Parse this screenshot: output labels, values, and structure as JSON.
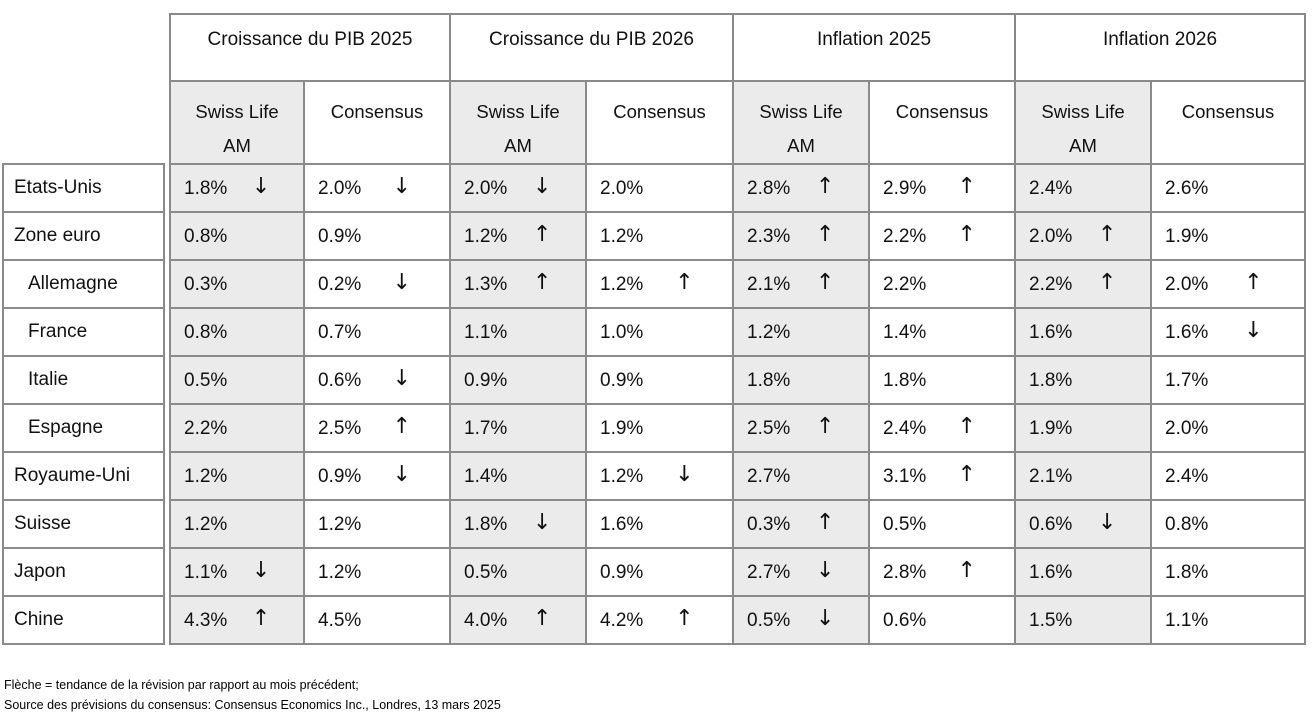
{
  "table": {
    "groups": [
      {
        "label": "Croissance du PIB 2025"
      },
      {
        "label": "Croissance du PIB 2026"
      },
      {
        "label": "Inflation 2025"
      },
      {
        "label": "Inflation 2026"
      }
    ],
    "subheader": {
      "swiss_life": "Swiss Life AM",
      "consensus": "Consensus"
    },
    "rows": [
      {
        "label": "Etats-Unis",
        "indent": false,
        "cells": [
          {
            "value": "1.8%",
            "arrow": "down"
          },
          {
            "value": "2.0%",
            "arrow": "down"
          },
          {
            "value": "2.0%",
            "arrow": "down"
          },
          {
            "value": "2.0%",
            "arrow": null
          },
          {
            "value": "2.8%",
            "arrow": "up"
          },
          {
            "value": "2.9%",
            "arrow": "up"
          },
          {
            "value": "2.4%",
            "arrow": null
          },
          {
            "value": "2.6%",
            "arrow": null
          }
        ]
      },
      {
        "label": "Zone euro",
        "indent": false,
        "cells": [
          {
            "value": "0.8%",
            "arrow": null
          },
          {
            "value": "0.9%",
            "arrow": null
          },
          {
            "value": "1.2%",
            "arrow": "up"
          },
          {
            "value": "1.2%",
            "arrow": null
          },
          {
            "value": "2.3%",
            "arrow": "up"
          },
          {
            "value": "2.2%",
            "arrow": "up"
          },
          {
            "value": "2.0%",
            "arrow": "up"
          },
          {
            "value": "1.9%",
            "arrow": null
          }
        ]
      },
      {
        "label": "Allemagne",
        "indent": true,
        "cells": [
          {
            "value": "0.3%",
            "arrow": null
          },
          {
            "value": "0.2%",
            "arrow": "down"
          },
          {
            "value": "1.3%",
            "arrow": "up"
          },
          {
            "value": "1.2%",
            "arrow": "up"
          },
          {
            "value": "2.1%",
            "arrow": "up"
          },
          {
            "value": "2.2%",
            "arrow": null
          },
          {
            "value": "2.2%",
            "arrow": "up"
          },
          {
            "value": "2.0%",
            "arrow": "up"
          }
        ]
      },
      {
        "label": "France",
        "indent": true,
        "cells": [
          {
            "value": "0.8%",
            "arrow": null
          },
          {
            "value": "0.7%",
            "arrow": null
          },
          {
            "value": "1.1%",
            "arrow": null
          },
          {
            "value": "1.0%",
            "arrow": null
          },
          {
            "value": "1.2%",
            "arrow": null
          },
          {
            "value": "1.4%",
            "arrow": null
          },
          {
            "value": "1.6%",
            "arrow": null
          },
          {
            "value": "1.6%",
            "arrow": "down"
          }
        ]
      },
      {
        "label": "Italie",
        "indent": true,
        "cells": [
          {
            "value": "0.5%",
            "arrow": null
          },
          {
            "value": "0.6%",
            "arrow": "down"
          },
          {
            "value": "0.9%",
            "arrow": null
          },
          {
            "value": "0.9%",
            "arrow": null
          },
          {
            "value": "1.8%",
            "arrow": null
          },
          {
            "value": "1.8%",
            "arrow": null
          },
          {
            "value": "1.8%",
            "arrow": null
          },
          {
            "value": "1.7%",
            "arrow": null
          }
        ]
      },
      {
        "label": "Espagne",
        "indent": true,
        "cells": [
          {
            "value": "2.2%",
            "arrow": null
          },
          {
            "value": "2.5%",
            "arrow": "up"
          },
          {
            "value": "1.7%",
            "arrow": null
          },
          {
            "value": "1.9%",
            "arrow": null
          },
          {
            "value": "2.5%",
            "arrow": "up"
          },
          {
            "value": "2.4%",
            "arrow": "up"
          },
          {
            "value": "1.9%",
            "arrow": null
          },
          {
            "value": "2.0%",
            "arrow": null
          }
        ]
      },
      {
        "label": "Royaume-Uni",
        "indent": false,
        "cells": [
          {
            "value": "1.2%",
            "arrow": null
          },
          {
            "value": "0.9%",
            "arrow": "down"
          },
          {
            "value": "1.4%",
            "arrow": null
          },
          {
            "value": "1.2%",
            "arrow": "down"
          },
          {
            "value": "2.7%",
            "arrow": null
          },
          {
            "value": "3.1%",
            "arrow": "up"
          },
          {
            "value": "2.1%",
            "arrow": null
          },
          {
            "value": "2.4%",
            "arrow": null
          }
        ]
      },
      {
        "label": "Suisse",
        "indent": false,
        "cells": [
          {
            "value": "1.2%",
            "arrow": null
          },
          {
            "value": "1.2%",
            "arrow": null
          },
          {
            "value": "1.8%",
            "arrow": "down"
          },
          {
            "value": "1.6%",
            "arrow": null
          },
          {
            "value": "0.3%",
            "arrow": "up"
          },
          {
            "value": "0.5%",
            "arrow": null
          },
          {
            "value": "0.6%",
            "arrow": "down"
          },
          {
            "value": "0.8%",
            "arrow": null
          }
        ]
      },
      {
        "label": "Japon",
        "indent": false,
        "cells": [
          {
            "value": "1.1%",
            "arrow": "down"
          },
          {
            "value": "1.2%",
            "arrow": null
          },
          {
            "value": "0.5%",
            "arrow": null
          },
          {
            "value": "0.9%",
            "arrow": null
          },
          {
            "value": "2.7%",
            "arrow": "down"
          },
          {
            "value": "2.8%",
            "arrow": "up"
          },
          {
            "value": "1.6%",
            "arrow": null
          },
          {
            "value": "1.8%",
            "arrow": null
          }
        ]
      },
      {
        "label": "Chine",
        "indent": false,
        "cells": [
          {
            "value": "4.3%",
            "arrow": "up"
          },
          {
            "value": "4.5%",
            "arrow": null
          },
          {
            "value": "4.0%",
            "arrow": "up"
          },
          {
            "value": "4.2%",
            "arrow": "up"
          },
          {
            "value": "0.5%",
            "arrow": "down"
          },
          {
            "value": "0.6%",
            "arrow": null
          },
          {
            "value": "1.5%",
            "arrow": null
          },
          {
            "value": "1.1%",
            "arrow": null
          }
        ]
      }
    ]
  },
  "arrow_glyphs": {
    "up": "↑",
    "down": "↓"
  },
  "footnotes": [
    "Flèche = tendance de la révision par rapport au mois précédent;",
    "Source des prévisions du consensus: Consensus Economics Inc., Londres, 13 mars 2025"
  ],
  "colors": {
    "grid": "#8a8a8a",
    "shade": "#ebebeb",
    "text": "#111111"
  }
}
